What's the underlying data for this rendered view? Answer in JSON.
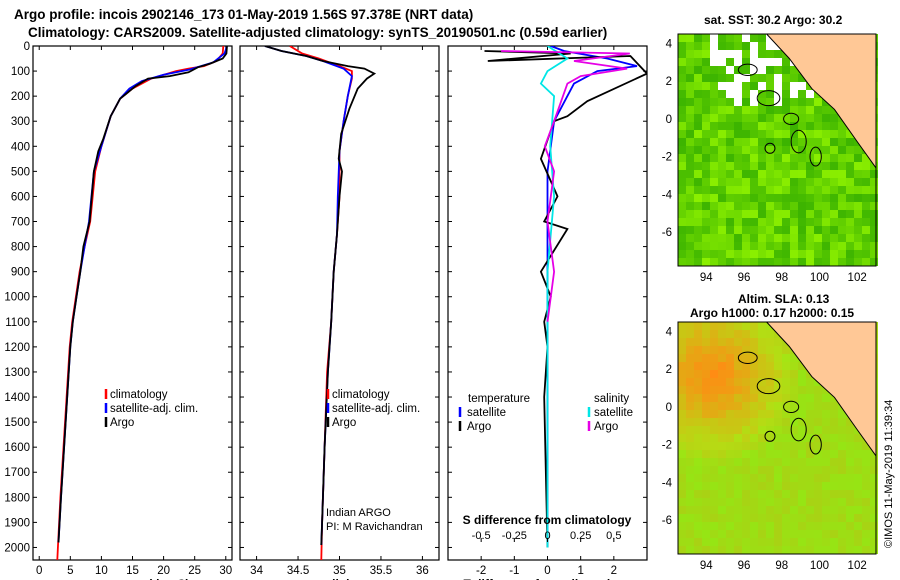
{
  "header": {
    "line1": "Argo profile: incois 2902146_173 01-May-2019 1.56S 97.378E (NRT data)",
    "line2": "Climatology: CARS2009. Satellite-adjusted climatology: synTS_20190501.nc (0.59d earlier)"
  },
  "colors": {
    "argo": "#000000",
    "climatology": "#ff0000",
    "satellite": "#0000ff",
    "sat_salinity": "#00e6e6",
    "argo_salinity_diff": "#e600e6",
    "land": "#ffc896",
    "coast": "#000000"
  },
  "chart_data": [
    {
      "type": "line",
      "name": "temperature",
      "xlabel": "temperature (deg C)",
      "ylabel": "depth",
      "xlim": [
        -1,
        31
      ],
      "ylim": [
        2050,
        0
      ],
      "xticks": [
        0,
        5,
        10,
        15,
        20,
        25,
        30
      ],
      "yticks": [
        0,
        100,
        200,
        300,
        400,
        500,
        600,
        700,
        800,
        900,
        1000,
        1100,
        1200,
        1300,
        1400,
        1500,
        1600,
        1700,
        1800,
        1900,
        2000
      ],
      "legend": [
        "climatology",
        "satellite-adj. clim.",
        "Argo"
      ],
      "series": [
        {
          "name": "climatology",
          "color": "#ff0000",
          "points": [
            [
              29.6,
              0
            ],
            [
              29.5,
              30
            ],
            [
              28.5,
              60
            ],
            [
              26.5,
              80
            ],
            [
              24,
              90
            ],
            [
              22,
              100
            ],
            [
              18,
              130
            ],
            [
              15,
              170
            ],
            [
              13,
              210
            ],
            [
              11.5,
              280
            ],
            [
              10,
              400
            ],
            [
              9,
              500
            ],
            [
              8.2,
              700
            ],
            [
              7.3,
              800
            ],
            [
              6.5,
              900
            ],
            [
              5.9,
              1000
            ],
            [
              5.3,
              1100
            ],
            [
              4.9,
              1200
            ],
            [
              4.4,
              1400
            ],
            [
              3.9,
              1600
            ],
            [
              3.4,
              1800
            ],
            [
              3.0,
              2000
            ],
            [
              2.9,
              2050
            ]
          ]
        },
        {
          "name": "satellite-adj. clim.",
          "color": "#0000ff",
          "points": [
            [
              30.2,
              0
            ],
            [
              29.8,
              30
            ],
            [
              28,
              65
            ],
            [
              24,
              95
            ],
            [
              20,
              115
            ],
            [
              16.5,
              140
            ],
            [
              14.5,
              170
            ],
            [
              13,
              210
            ],
            [
              11.5,
              280
            ],
            [
              10,
              400
            ],
            [
              8.8,
              500
            ],
            [
              8,
              700
            ],
            [
              7.3,
              800
            ],
            [
              6.6,
              900
            ],
            [
              6,
              1000
            ],
            [
              5.4,
              1100
            ],
            [
              5,
              1200
            ],
            [
              4.5,
              1400
            ],
            [
              4,
              1600
            ],
            [
              3.5,
              1800
            ],
            [
              3.1,
              1980
            ]
          ]
        },
        {
          "name": "Argo",
          "color": "#000000",
          "points": [
            [
              30.2,
              0
            ],
            [
              30.1,
              30
            ],
            [
              29.5,
              50
            ],
            [
              27.5,
              70
            ],
            [
              25.5,
              85
            ],
            [
              24,
              105
            ],
            [
              21,
              120
            ],
            [
              17.5,
              130
            ],
            [
              15.5,
              160
            ],
            [
              13,
              210
            ],
            [
              11.5,
              280
            ],
            [
              10.3,
              370
            ],
            [
              9.5,
              420
            ],
            [
              8.8,
              500
            ],
            [
              8.1,
              700
            ],
            [
              7.1,
              800
            ],
            [
              6.6,
              900
            ],
            [
              6,
              1000
            ],
            [
              5.4,
              1100
            ],
            [
              5,
              1200
            ],
            [
              4.5,
              1400
            ],
            [
              4,
              1600
            ],
            [
              3.5,
              1800
            ],
            [
              3.1,
              1980
            ]
          ]
        }
      ]
    },
    {
      "type": "line",
      "name": "salinity",
      "xlabel": "salinity",
      "xlim": [
        33.8,
        36.2
      ],
      "ylim": [
        2050,
        0
      ],
      "xticks": [
        34,
        34.5,
        35,
        35.5,
        36
      ],
      "legend": [
        "climatology",
        "satellite-adj. clim.",
        "Argo"
      ],
      "annotation": [
        "Indian ARGO",
        "PI: M Ravichandran"
      ],
      "series": [
        {
          "name": "climatology",
          "color": "#ff0000",
          "points": [
            [
              34.4,
              0
            ],
            [
              34.55,
              30
            ],
            [
              34.75,
              50
            ],
            [
              35.0,
              80
            ],
            [
              35.15,
              100
            ],
            [
              35.15,
              130
            ],
            [
              35.1,
              200
            ],
            [
              35.05,
              300
            ],
            [
              35.0,
              420
            ],
            [
              35.0,
              600
            ],
            [
              34.97,
              750
            ],
            [
              34.93,
              900
            ],
            [
              34.9,
              1100
            ],
            [
              34.85,
              1300
            ],
            [
              34.82,
              1600
            ],
            [
              34.79,
              1900
            ],
            [
              34.78,
              2050
            ]
          ]
        },
        {
          "name": "satellite-adj. clim.",
          "color": "#0000ff",
          "points": [
            [
              34.1,
              0
            ],
            [
              34.3,
              20
            ],
            [
              34.6,
              40
            ],
            [
              34.8,
              60
            ],
            [
              35.05,
              90
            ],
            [
              35.15,
              120
            ],
            [
              35.1,
              200
            ],
            [
              35.05,
              300
            ],
            [
              35.0,
              420
            ],
            [
              34.98,
              600
            ],
            [
              34.97,
              750
            ],
            [
              34.93,
              900
            ],
            [
              34.9,
              1100
            ],
            [
              34.86,
              1300
            ],
            [
              34.82,
              1600
            ],
            [
              34.79,
              1900
            ],
            [
              34.78,
              1990
            ]
          ]
        },
        {
          "name": "Argo",
          "color": "#000000",
          "points": [
            [
              34.1,
              0
            ],
            [
              34.3,
              20
            ],
            [
              34.6,
              40
            ],
            [
              34.8,
              60
            ],
            [
              35.1,
              80
            ],
            [
              35.3,
              90
            ],
            [
              35.42,
              110
            ],
            [
              35.33,
              130
            ],
            [
              35.22,
              170
            ],
            [
              35.12,
              250
            ],
            [
              35.02,
              350
            ],
            [
              34.99,
              450
            ],
            [
              35.03,
              500
            ],
            [
              35.0,
              600
            ],
            [
              34.97,
              750
            ],
            [
              34.93,
              900
            ],
            [
              34.9,
              1100
            ],
            [
              34.86,
              1300
            ],
            [
              34.82,
              1600
            ],
            [
              34.79,
              1900
            ],
            [
              34.78,
              1990
            ]
          ]
        }
      ]
    },
    {
      "type": "line",
      "name": "difference from climatology",
      "xlabel": "T difference from climatology",
      "xlabel_top": "S difference from climatology",
      "xlim": [
        -3,
        3
      ],
      "ylim": [
        2050,
        0
      ],
      "xticks": [
        -2,
        -1,
        0,
        1,
        2
      ],
      "xticks_s": [
        -0.5,
        -0.25,
        0,
        0.25,
        0.5
      ],
      "legend_t": [
        "temperature",
        "satellite",
        "Argo"
      ],
      "legend_s": [
        "salinity",
        "satellite",
        "Argo"
      ],
      "series": [
        {
          "name": "T satellite",
          "color": "#0000ff",
          "points": [
            [
              0.1,
              0
            ],
            [
              0.5,
              20
            ],
            [
              1.8,
              50
            ],
            [
              2.7,
              80
            ],
            [
              1.5,
              100
            ],
            [
              0.8,
              150
            ],
            [
              0.2,
              300
            ],
            [
              0,
              500
            ],
            [
              0,
              1000
            ],
            [
              0,
              2000
            ]
          ]
        },
        {
          "name": "T Argo",
          "color": "#000000",
          "points": [
            [
              -1.9,
              20
            ],
            [
              0.7,
              30
            ],
            [
              -1.8,
              60
            ],
            [
              2.5,
              40
            ],
            [
              3.0,
              110
            ],
            [
              1.2,
              220
            ],
            [
              0.6,
              280
            ],
            [
              0.2,
              300
            ],
            [
              -0.2,
              450
            ],
            [
              0.3,
              600
            ],
            [
              -0.1,
              700
            ],
            [
              0.6,
              730
            ],
            [
              -0.2,
              900
            ],
            [
              0.1,
              1000
            ],
            [
              -0.1,
              1100
            ],
            [
              0,
              1200
            ],
            [
              -0.1,
              1400
            ],
            [
              0,
              2000
            ]
          ]
        },
        {
          "name": "S satellite",
          "color": "#00e6e6",
          "points": [
            [
              0,
              0
            ],
            [
              0.15,
              50
            ],
            [
              0,
              100
            ],
            [
              -0.05,
              150
            ],
            [
              0.05,
              200
            ],
            [
              0.02,
              400
            ],
            [
              0.05,
              600
            ],
            [
              0,
              900
            ],
            [
              0,
              1100
            ],
            [
              0,
              1300
            ],
            [
              0,
              2000
            ]
          ]
        },
        {
          "name": "S Argo",
          "color": "#e600e6",
          "points": [
            [
              -0.35,
              20
            ],
            [
              0.62,
              30
            ],
            [
              0.2,
              60
            ],
            [
              0.6,
              90
            ],
            [
              0.25,
              120
            ],
            [
              0.15,
              150
            ],
            [
              0.05,
              300
            ],
            [
              -0.02,
              400
            ],
            [
              0.05,
              500
            ],
            [
              0,
              700
            ],
            [
              0.05,
              900
            ],
            [
              0,
              1100
            ]
          ]
        }
      ]
    },
    {
      "type": "heatmap",
      "name": "sat SST map",
      "title": "sat. SST: 30.2 Argo: 30.2",
      "xticks": [
        94,
        96,
        98,
        100,
        102
      ],
      "yticks": [
        4,
        2,
        0,
        -2,
        -4,
        -6
      ],
      "xlim": [
        92.5,
        103
      ],
      "ylim": [
        -7.8,
        4.5
      ],
      "argo_position": [
        97.378,
        -1.56
      ]
    },
    {
      "type": "heatmap",
      "name": "altimetry SLA map",
      "title_line1": "Altim. SLA: 0.13",
      "title_line2": "Argo h1000: 0.17 h2000: 0.15",
      "xticks": [
        94,
        96,
        98,
        100,
        102
      ],
      "yticks": [
        4,
        2,
        0,
        -2,
        -4,
        -6
      ],
      "xlim": [
        92.5,
        103
      ],
      "ylim": [
        -7.8,
        4.5
      ],
      "argo_position": [
        97.378,
        -1.56
      ]
    }
  ],
  "footer": {
    "stamp": "©IMOS 11-May-2019 11:39:34"
  }
}
